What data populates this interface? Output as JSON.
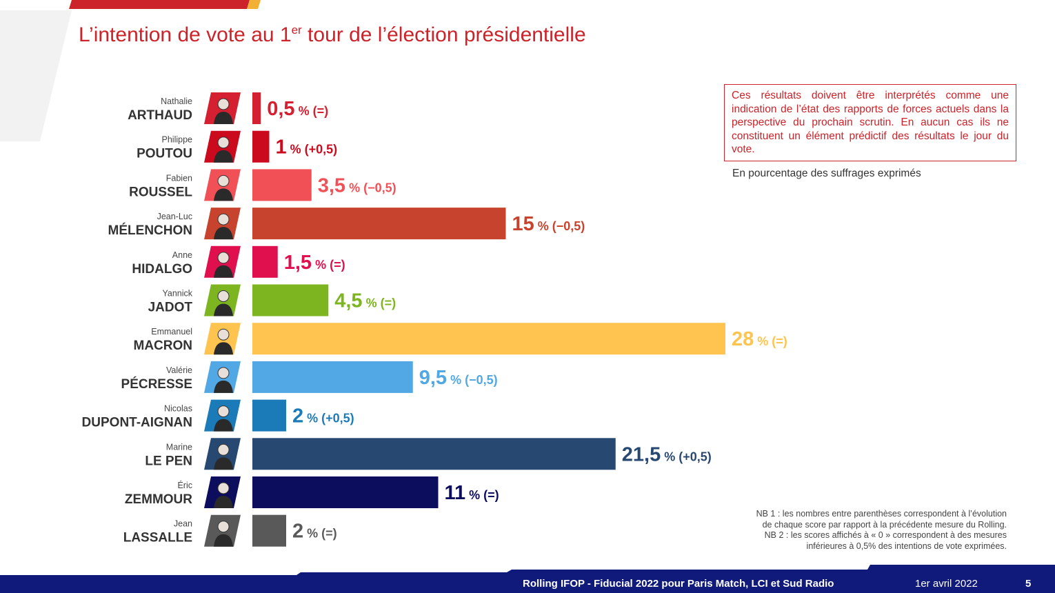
{
  "title": {
    "prefix": "L’intention de vote au 1",
    "sup": "er",
    "suffix": " tour de l’élection présidentielle"
  },
  "disclaimer": "Ces résultats doivent être interprétés comme une indication de l’état des rapports de forces actuels dans la perspective du prochain scrutin. En aucun cas ils ne constituent un élément prédictif des résultats le jour du vote.",
  "unit_note": "En pourcentage des suffrages exprimés",
  "notes": [
    "NB 1 : les nombres entre parenthèses correspondent à l’évolution",
    "de chaque score par rapport à la précédente mesure du Rolling.",
    "NB 2 : les scores affichés à « 0 » correspondent à des mesures",
    "inférieures à 0,5% des intentions de vote exprimées."
  ],
  "footer": {
    "source": "Rolling IFOP - Fiducial 2022 pour Paris Match, LCI et Sud Radio",
    "date": "1er avril 2022",
    "page": "5"
  },
  "colors": {
    "brand_red": "#cc2229",
    "navy": "#0f1a7a"
  },
  "chart_data": {
    "type": "bar",
    "orientation": "horizontal",
    "xlim": [
      0,
      28
    ],
    "unit": "%",
    "candidates": [
      {
        "first": "Nathalie",
        "last": "ARTHAUD",
        "value": 0.5,
        "value_label": "0,5",
        "change_label": "% (=)",
        "color": "#d42030"
      },
      {
        "first": "Philippe",
        "last": "POUTOU",
        "value": 1,
        "value_label": "1",
        "change_label": "% (+0,5)",
        "color": "#cc0a1e"
      },
      {
        "first": "Fabien",
        "last": "ROUSSEL",
        "value": 3.5,
        "value_label": "3,5",
        "change_label": "% (−0,5)",
        "color": "#f25057"
      },
      {
        "first": "Jean-Luc",
        "last": "MÉLENCHON",
        "value": 15,
        "value_label": "15",
        "change_label": "% (−0,5)",
        "color": "#c8432d"
      },
      {
        "first": "Anne",
        "last": "HIDALGO",
        "value": 1.5,
        "value_label": "1,5",
        "change_label": "% (=)",
        "color": "#e0104f"
      },
      {
        "first": "Yannick",
        "last": "JADOT",
        "value": 4.5,
        "value_label": "4,5",
        "change_label": "% (=)",
        "color": "#7cb51f"
      },
      {
        "first": "Emmanuel",
        "last": "MACRON",
        "value": 28,
        "value_label": "28",
        "change_label": "% (=)",
        "color": "#fec44f"
      },
      {
        "first": "Valérie",
        "last": "PÉCRESSE",
        "value": 9.5,
        "value_label": "9,5",
        "change_label": "% (−0,5)",
        "color": "#51a8e4"
      },
      {
        "first": "Nicolas",
        "last": "DUPONT-AIGNAN",
        "value": 2,
        "value_label": "2",
        "change_label": "% (+0,5)",
        "color": "#1b7bb8"
      },
      {
        "first": "Marine",
        "last": "LE PEN",
        "value": 21.5,
        "value_label": "21,5",
        "change_label": "% (+0,5)",
        "color": "#274871"
      },
      {
        "first": "Éric",
        "last": "ZEMMOUR",
        "value": 11,
        "value_label": "11",
        "change_label": "% (=)",
        "color": "#0d0d5e"
      },
      {
        "first": "Jean",
        "last": "LASSALLE",
        "value": 2,
        "value_label": "2",
        "change_label": "% (=)",
        "color": "#595959"
      }
    ]
  }
}
